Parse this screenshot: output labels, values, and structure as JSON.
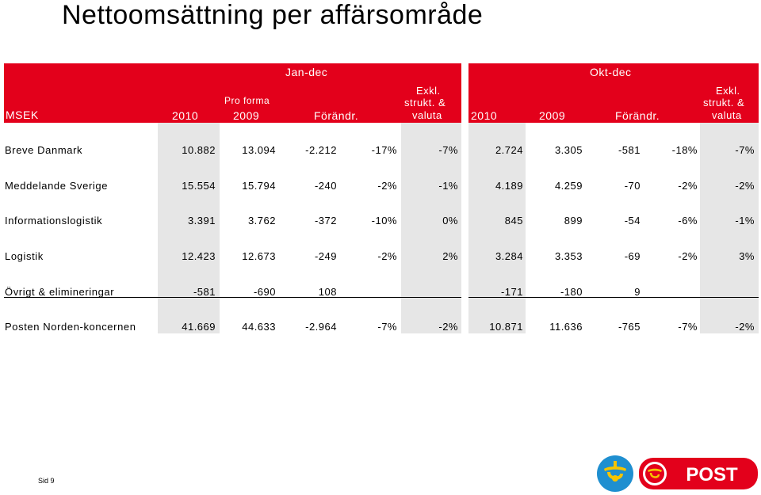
{
  "title": "Nettoomsättning per affärsområde",
  "header": {
    "group_left": "Jan-dec",
    "group_right": "Okt-dec",
    "msek": "MSEK",
    "pro_forma": "Pro forma",
    "col_2010": "2010",
    "col_2009": "2009",
    "change": "Förändr.",
    "excl_line1": "Exkl.",
    "excl_line2": "strukt. &",
    "excl_line3": "valuta"
  },
  "rows": [
    {
      "label": "Breve Danmark",
      "values": [
        "10.882",
        "13.094",
        "-2.212",
        "-17%",
        "-7%",
        "2.724",
        "3.305",
        "-581",
        "-18%",
        "-7%"
      ]
    },
    {
      "label": "Meddelande Sverige",
      "values": [
        "15.554",
        "15.794",
        "-240",
        "-2%",
        "-1%",
        "4.189",
        "4.259",
        "-70",
        "-2%",
        "-2%"
      ]
    },
    {
      "label": "Informationslogistik",
      "values": [
        "3.391",
        "3.762",
        "-372",
        "-10%",
        "0%",
        "845",
        "899",
        "-54",
        "-6%",
        "-1%"
      ]
    },
    {
      "label": "Logistik",
      "values": [
        "12.423",
        "12.673",
        "-249",
        "-2%",
        "2%",
        "3.284",
        "3.353",
        "-69",
        "-2%",
        "3%"
      ]
    },
    {
      "label": "Övrigt & elimineringar",
      "values": [
        "-581",
        "-690",
        "108",
        "",
        "",
        "-171",
        "-180",
        "9",
        "",
        ""
      ]
    },
    {
      "label": "Posten Norden-koncernen",
      "values": [
        "41.669",
        "44.633",
        "-2.964",
        "-7%",
        "-2%",
        "10.871",
        "11.636",
        "-765",
        "-7%",
        "-2%"
      ]
    }
  ],
  "footer": "Sid 9",
  "logo_text": "POST",
  "colors": {
    "brand_red": "#e3001b",
    "shade": "#e6e6e6",
    "horn_blue": "#1f8fd0",
    "horn_yellow": "#f5c400"
  }
}
